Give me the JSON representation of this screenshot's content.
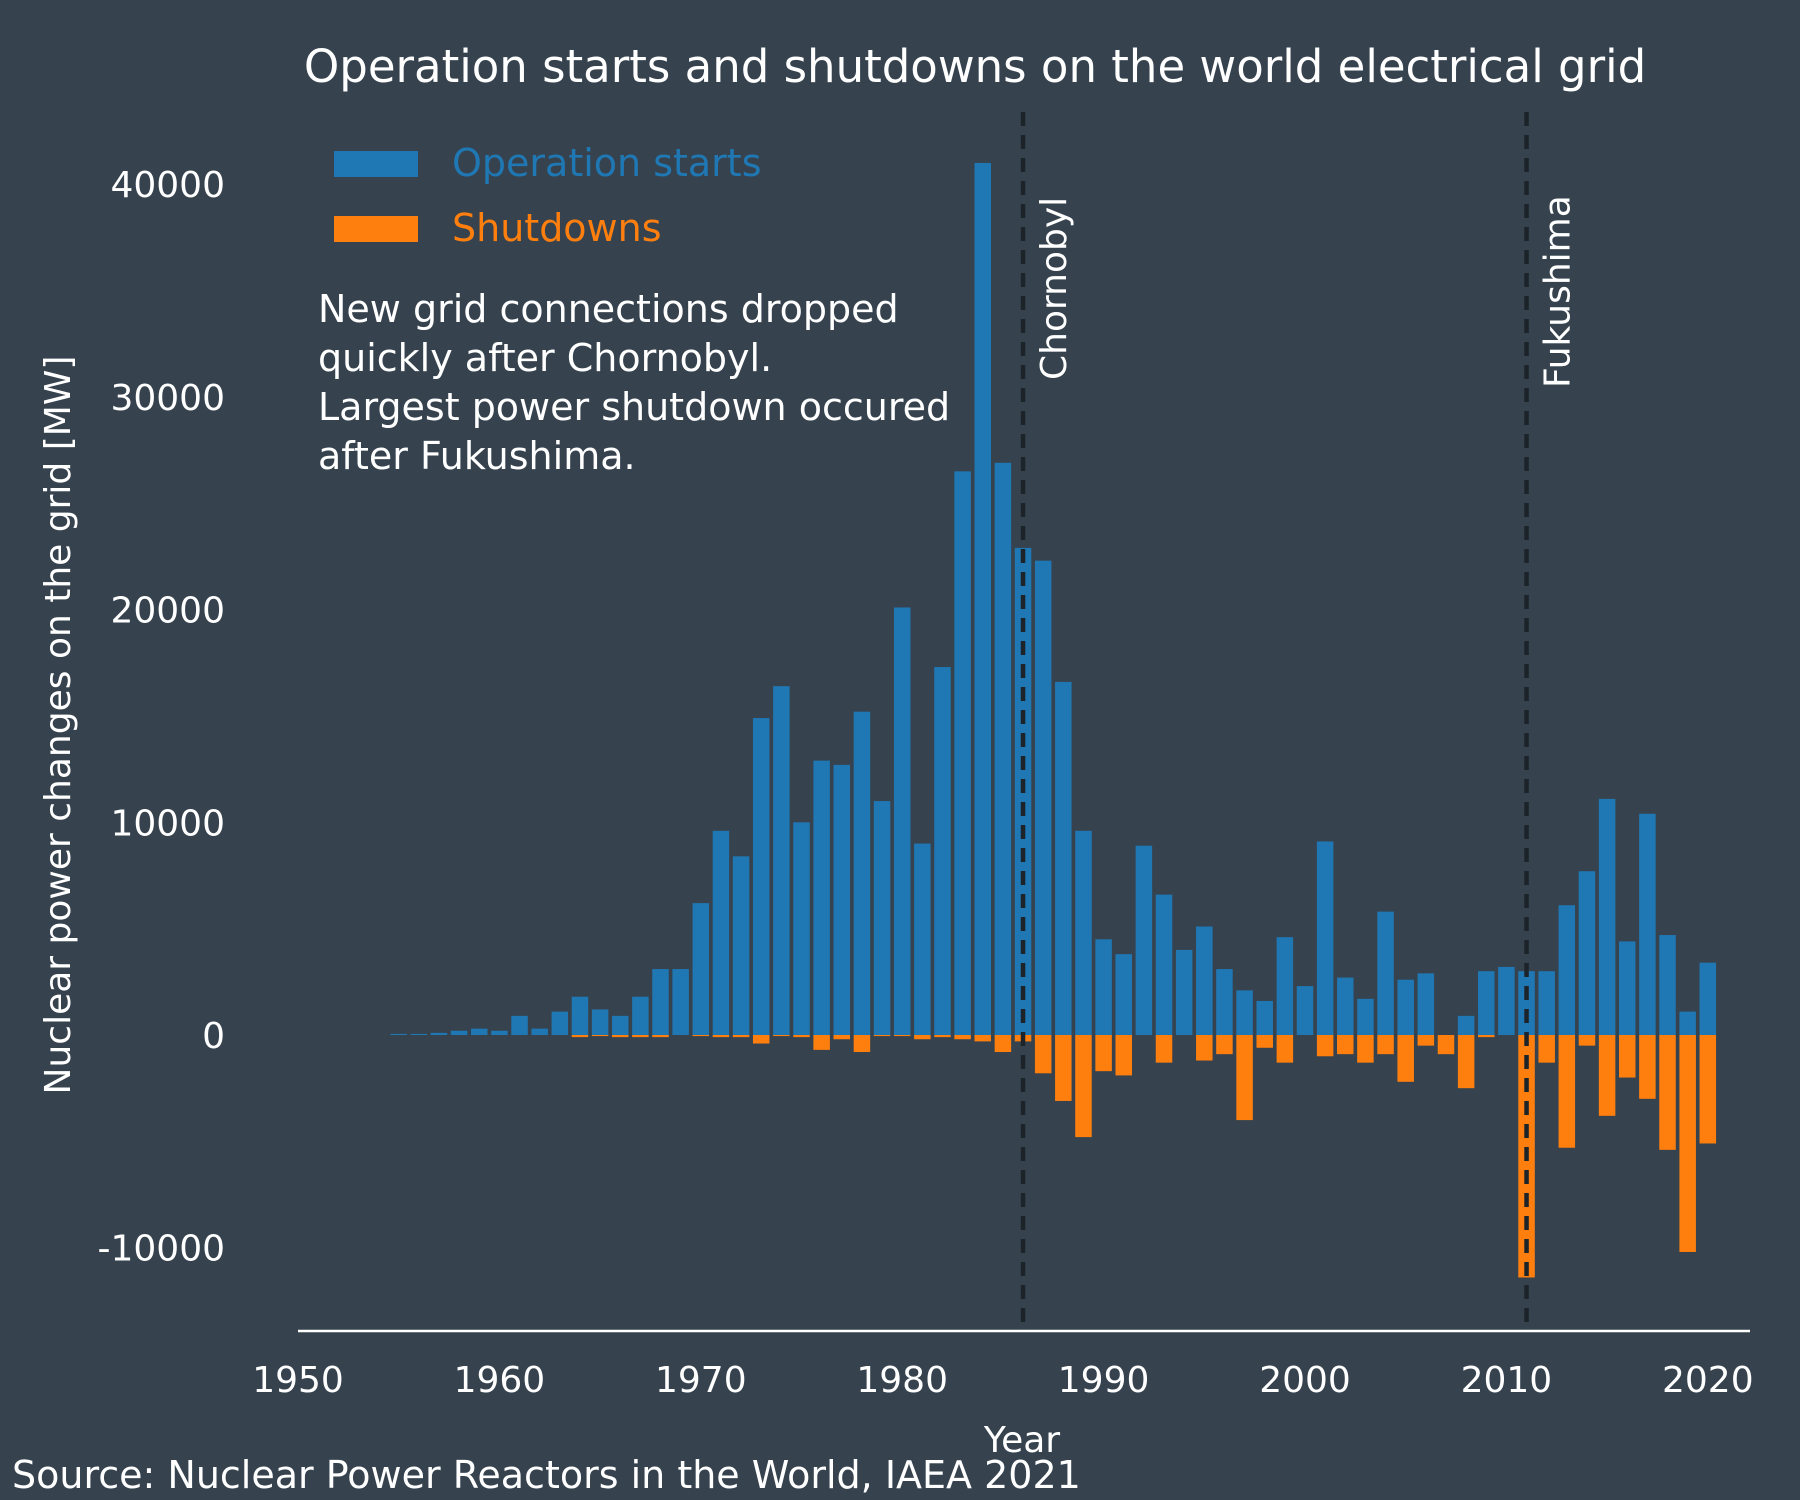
{
  "chart_data": {
    "type": "bar",
    "title": "Operation starts and shutdowns on the world electrical grid",
    "xlabel": "Year",
    "ylabel": "Nuclear power changes on the grid [MW]",
    "xlim": [
      1950,
      2022
    ],
    "ylim": [
      -14000,
      43000
    ],
    "x_ticks": [
      "1950",
      "1960",
      "1970",
      "1980",
      "1990",
      "2000",
      "2010",
      "2020"
    ],
    "y_ticks": [
      "40000",
      "30000",
      "20000",
      "10000",
      "0",
      "-10000"
    ],
    "legend_position": "top-left",
    "colors": {
      "starts": "#1f77b4",
      "shutdowns": "#ff7f0e",
      "background": "#36434f",
      "event_line": "#1c2329"
    },
    "years": [
      1955,
      1956,
      1957,
      1958,
      1959,
      1960,
      1961,
      1962,
      1963,
      1964,
      1965,
      1966,
      1967,
      1968,
      1969,
      1970,
      1971,
      1972,
      1973,
      1974,
      1975,
      1976,
      1977,
      1978,
      1979,
      1980,
      1981,
      1982,
      1983,
      1984,
      1985,
      1986,
      1987,
      1988,
      1989,
      1990,
      1991,
      1992,
      1993,
      1994,
      1995,
      1996,
      1997,
      1998,
      1999,
      2000,
      2001,
      2002,
      2003,
      2004,
      2005,
      2006,
      2007,
      2008,
      2009,
      2010,
      2011,
      2012,
      2013,
      2014,
      2015,
      2016,
      2017,
      2018,
      2019,
      2020,
      2021
    ],
    "series": [
      {
        "name": "Operation starts",
        "values": [
          50,
          50,
          100,
          200,
          300,
          200,
          900,
          300,
          1100,
          1800,
          1200,
          900,
          1800,
          3100,
          3100,
          6200,
          9600,
          8400,
          14900,
          16400,
          10000,
          12900,
          12700,
          15200,
          11000,
          20100,
          9000,
          17300,
          26500,
          41000,
          26900,
          22900,
          22300,
          16600,
          9600,
          4500,
          3800,
          8900,
          6600,
          4000,
          5100,
          3100,
          2100,
          1600,
          4600,
          2300,
          9100,
          2700,
          1700,
          5800,
          2600,
          2900,
          0,
          900,
          3000,
          3200,
          3000,
          3000,
          6100,
          7700,
          11100,
          4400,
          10400,
          4700,
          1100,
          3400,
          0
        ]
      },
      {
        "name": "Shutdowns",
        "values": [
          0,
          0,
          0,
          0,
          0,
          0,
          0,
          0,
          0,
          -100,
          -50,
          -100,
          -100,
          -100,
          0,
          -50,
          -100,
          -100,
          -400,
          -50,
          -100,
          -700,
          -200,
          -800,
          -50,
          -50,
          -200,
          -100,
          -200,
          -300,
          -800,
          -300,
          -1800,
          -3100,
          -4800,
          -1700,
          -1900,
          0,
          -1300,
          0,
          -1200,
          -900,
          -4000,
          -600,
          -1300,
          0,
          -1000,
          -900,
          -1300,
          -900,
          -2200,
          -500,
          -900,
          -2500,
          -100,
          0,
          -11400,
          -1300,
          -5300,
          -500,
          -3800,
          -2000,
          -3000,
          -5400,
          -10200,
          -5100,
          0
        ]
      }
    ],
    "events": [
      {
        "label": "Chornobyl",
        "year": 1986
      },
      {
        "label": "Fukushima",
        "year": 2011
      }
    ],
    "annotation": [
      "New grid connections dropped",
      "quickly after Chornobyl.",
      "Largest power shutdown occured",
      "after Fukushima."
    ],
    "source": "Source: Nuclear Power Reactors in the World, IAEA 2021"
  }
}
